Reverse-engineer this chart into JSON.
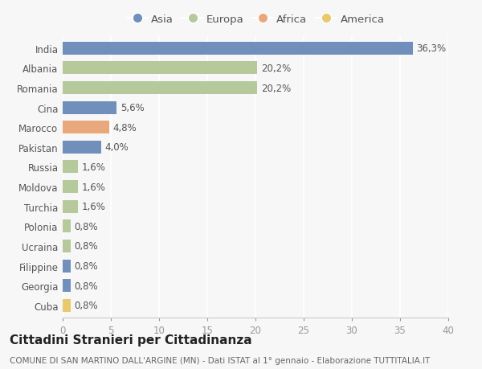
{
  "categories": [
    "India",
    "Albania",
    "Romania",
    "Cina",
    "Marocco",
    "Pakistan",
    "Russia",
    "Moldova",
    "Turchia",
    "Polonia",
    "Ucraina",
    "Filippine",
    "Georgia",
    "Cuba"
  ],
  "values": [
    36.3,
    20.2,
    20.2,
    5.6,
    4.8,
    4.0,
    1.6,
    1.6,
    1.6,
    0.8,
    0.8,
    0.8,
    0.8,
    0.8
  ],
  "labels": [
    "36,3%",
    "20,2%",
    "20,2%",
    "5,6%",
    "4,8%",
    "4,0%",
    "1,6%",
    "1,6%",
    "1,6%",
    "0,8%",
    "0,8%",
    "0,8%",
    "0,8%",
    "0,8%"
  ],
  "colors": [
    "#7090bb",
    "#b5c99a",
    "#b5c99a",
    "#7090bb",
    "#e8a87c",
    "#7090bb",
    "#b5c99a",
    "#b5c99a",
    "#b5c99a",
    "#b5c99a",
    "#b5c99a",
    "#7090bb",
    "#7090bb",
    "#e8c96b"
  ],
  "legend": [
    {
      "label": "Asia",
      "color": "#7090bb"
    },
    {
      "label": "Europa",
      "color": "#b5c99a"
    },
    {
      "label": "Africa",
      "color": "#e8a87c"
    },
    {
      "label": "America",
      "color": "#e8c96b"
    }
  ],
  "xlim": [
    0,
    40
  ],
  "xticks": [
    0,
    5,
    10,
    15,
    20,
    25,
    30,
    35,
    40
  ],
  "title": "Cittadini Stranieri per Cittadinanza",
  "subtitle": "COMUNE DI SAN MARTINO DALL'ARGINE (MN) - Dati ISTAT al 1° gennaio - Elaborazione TUTTITALIA.IT",
  "background_color": "#f7f7f7",
  "bar_height": 0.65,
  "title_fontsize": 11,
  "subtitle_fontsize": 7.5,
  "label_fontsize": 8.5,
  "tick_fontsize": 8.5,
  "legend_fontsize": 9.5
}
